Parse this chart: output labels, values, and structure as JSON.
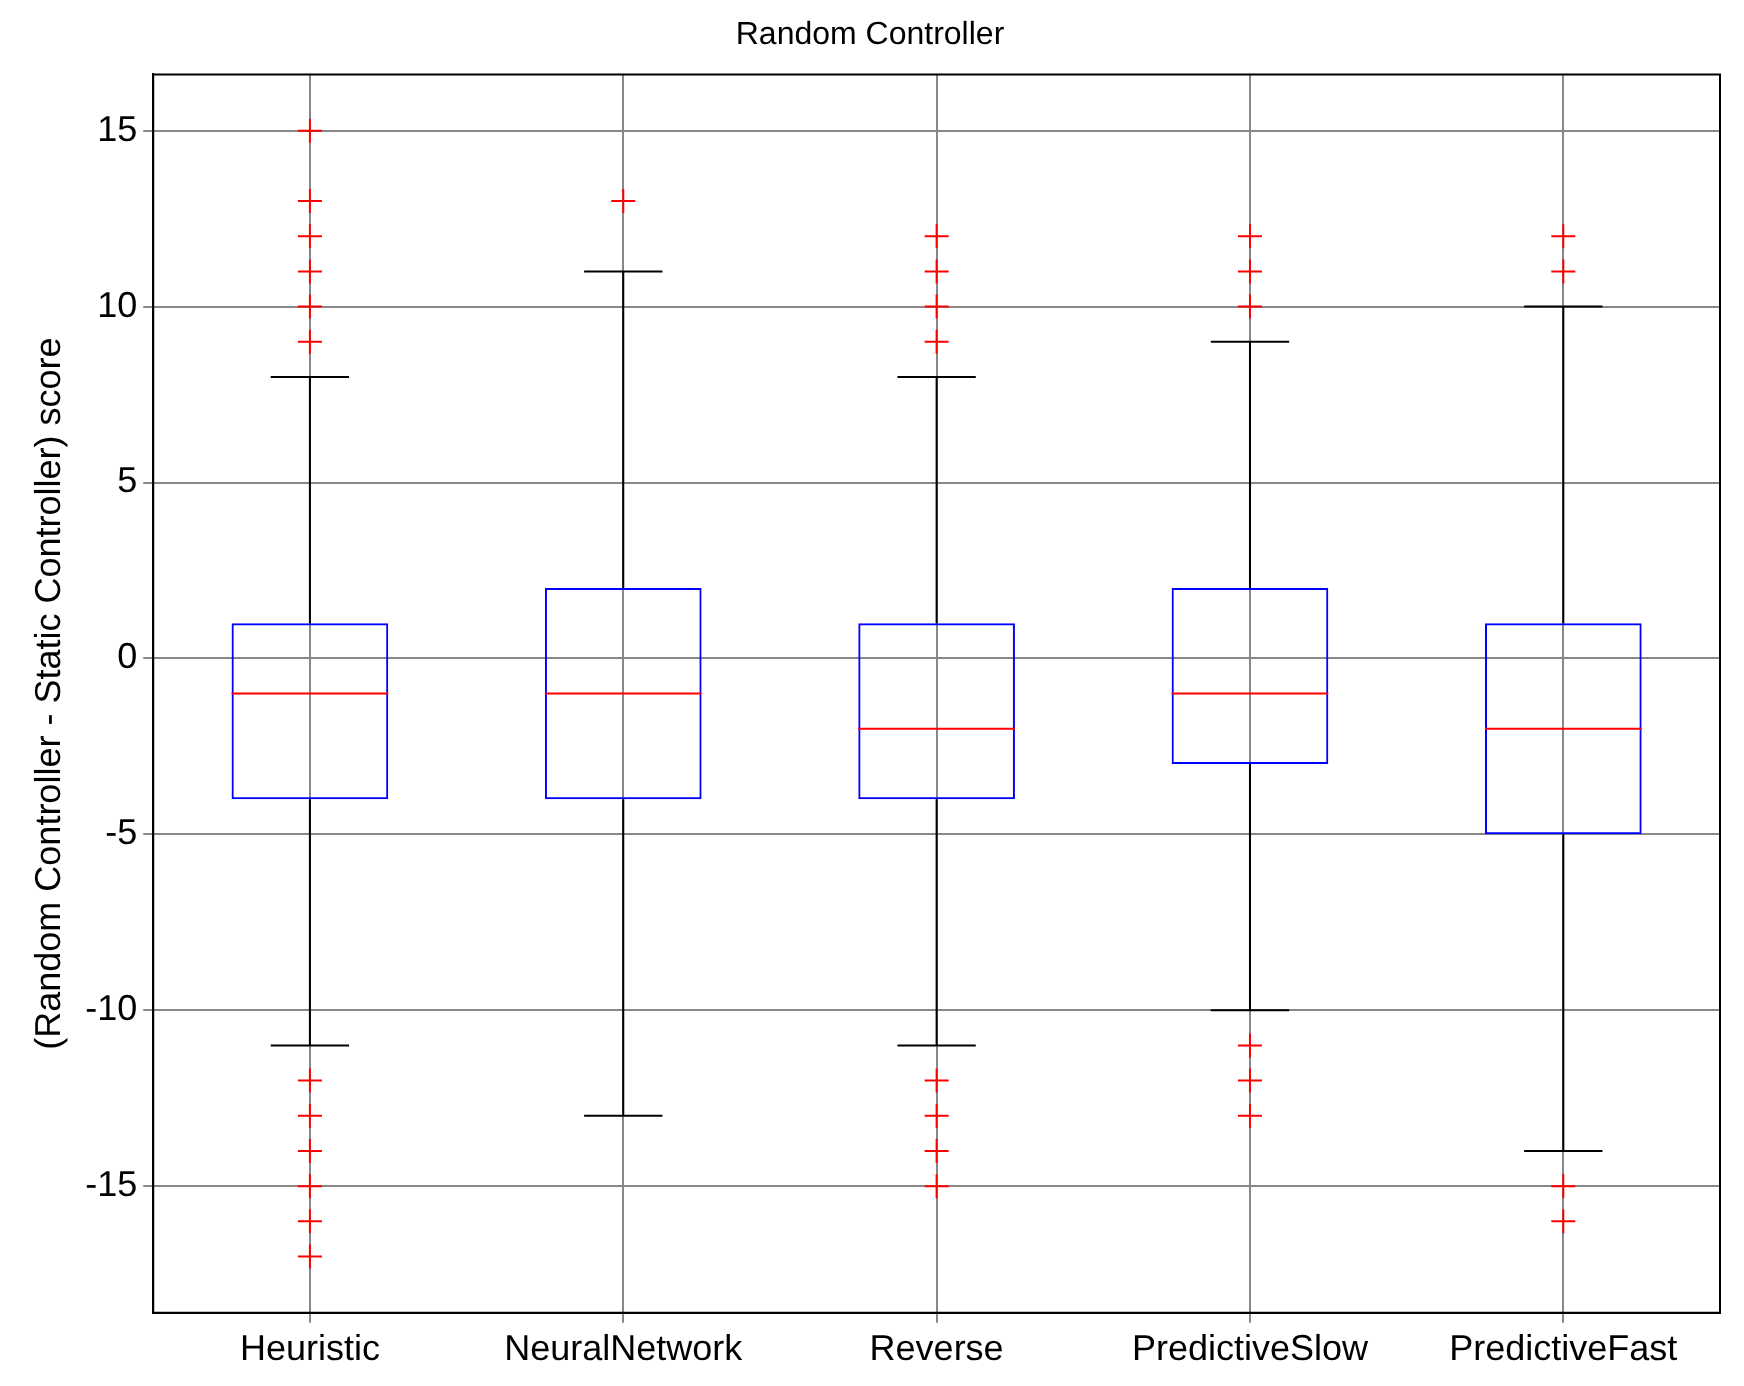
{
  "chart_data": {
    "type": "box",
    "title": "Random Controller",
    "ylabel": "(Random Controller - Static Controller) score",
    "categories": [
      "Heuristic",
      "NeuralNetwork",
      "Reverse",
      "PredictiveSlow",
      "PredictiveFast"
    ],
    "boxes": [
      {
        "low": -11,
        "q1": -4,
        "median": -1,
        "q3": 1,
        "high": 8,
        "outliers": [
          9,
          10,
          11,
          12,
          13,
          15,
          -12,
          -13,
          -14,
          -15,
          -16,
          -17
        ]
      },
      {
        "low": -13,
        "q1": -4,
        "median": -1,
        "q3": 2,
        "high": 11,
        "outliers": [
          13
        ]
      },
      {
        "low": -11,
        "q1": -4,
        "median": -2,
        "q3": 1,
        "high": 8,
        "outliers": [
          9,
          10,
          11,
          12,
          -12,
          -13,
          -14,
          -15
        ]
      },
      {
        "low": -10,
        "q1": -3,
        "median": -1,
        "q3": 2,
        "high": 9,
        "outliers": [
          10,
          11,
          12,
          -11,
          -12,
          -13
        ]
      },
      {
        "low": -14,
        "q1": -5,
        "median": -2,
        "q3": 1,
        "high": 10,
        "outliers": [
          11,
          12,
          -15,
          -16
        ]
      }
    ],
    "color": "#0000ff",
    "marker": "cross",
    "ylim": [
      -18.6,
      16.6
    ],
    "yticks": [
      -15,
      -10,
      -5,
      0,
      5,
      10,
      15
    ],
    "grid": true,
    "legend": false
  }
}
